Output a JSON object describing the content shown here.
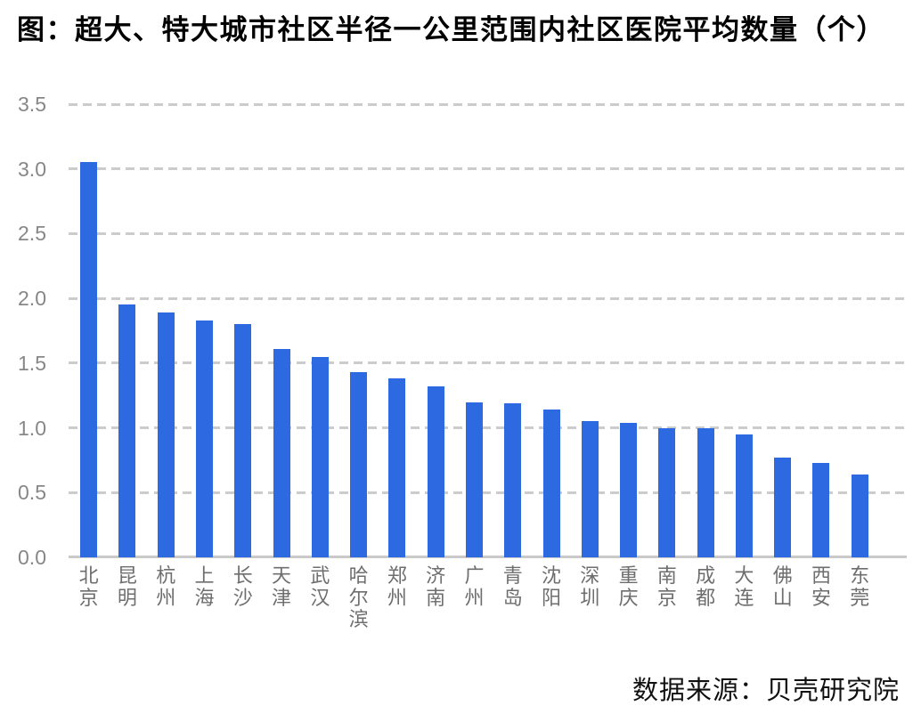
{
  "title": "图：超大、特大城市社区半径一公里范围内社区医院平均数量（个）",
  "source": "数据来源：贝壳研究院",
  "colors": {
    "bar": "#2d69e1",
    "gridline": "#cccccc",
    "axis_line": "#c9c9c9",
    "tick_text": "#878787",
    "category_text": "#6e6e6e",
    "title_text": "#000000"
  },
  "chart_data": {
    "type": "bar",
    "title": "图：超大、特大城市社区半径一公里范围内社区医院平均数量（个）",
    "categories": [
      "北京",
      "昆明",
      "杭州",
      "上海",
      "长沙",
      "天津",
      "武汉",
      "哈尔滨",
      "郑州",
      "济南",
      "广州",
      "青岛",
      "沈阳",
      "深圳",
      "重庆",
      "南京",
      "成都",
      "大连",
      "佛山",
      "西安",
      "东莞"
    ],
    "values": [
      3.05,
      1.95,
      1.89,
      1.83,
      1.8,
      1.61,
      1.55,
      1.43,
      1.38,
      1.32,
      1.2,
      1.19,
      1.14,
      1.05,
      1.04,
      1.0,
      1.0,
      0.95,
      0.77,
      0.73,
      0.64
    ],
    "xlabel": "",
    "ylabel": "",
    "ylim": [
      0,
      3.5
    ],
    "yticks": [
      "0.0",
      "0.5",
      "1.0",
      "1.5",
      "2.0",
      "2.5",
      "3.0",
      "3.5"
    ],
    "grid": "horizontal-dashed",
    "legend_position": "none",
    "bar_color": "#2d69e1",
    "annotation": "数据来源：贝壳研究院"
  }
}
